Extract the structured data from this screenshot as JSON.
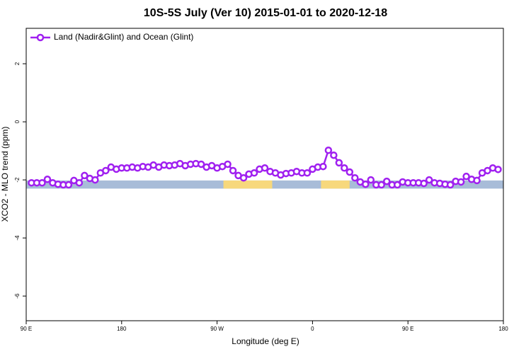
{
  "chart_data": {
    "type": "line",
    "title": "10S-5S July (Ver 10)   2015-01-01 to 2020-12-18",
    "x_label": "Longitude (deg E)",
    "y_label": "XCO2 - MLO trend (ppm)",
    "xlim": [
      90,
      540
    ],
    "ylim": [
      -6.85,
      3.22
    ],
    "xticks": [
      {
        "value": 90,
        "label": "90 E"
      },
      180,
      {
        "value": 270,
        "label": "90 W"
      },
      {
        "value": 360,
        "label": "0"
      },
      {
        "value": 450,
        "label": "90 E"
      },
      180
    ],
    "yticks": [
      2,
      0,
      -2,
      -4,
      -6
    ],
    "legend": "top-left",
    "band_range": [
      -2.3,
      -2.02
    ],
    "band_colors": [
      "#a8bcd8",
      "#f7d87c"
    ],
    "land_segments": [
      [
        276,
        322
      ],
      [
        368,
        395
      ]
    ],
    "x": [
      95,
      100,
      105,
      110,
      115,
      120,
      125,
      130,
      135,
      140,
      145,
      150,
      155,
      160,
      165,
      170,
      175,
      180,
      185,
      190,
      195,
      200,
      205,
      210,
      215,
      220,
      225,
      230,
      235,
      240,
      245,
      250,
      255,
      260,
      265,
      270,
      275,
      280,
      285,
      290,
      295,
      300,
      305,
      310,
      315,
      320,
      325,
      330,
      335,
      340,
      345,
      350,
      355,
      360,
      365,
      370,
      375,
      380,
      385,
      390,
      395,
      400,
      405,
      410,
      415,
      420,
      425,
      430,
      435,
      440,
      445,
      450,
      455,
      460,
      465,
      470,
      475,
      480,
      485,
      490,
      495,
      500,
      505,
      510,
      515,
      520,
      525,
      530,
      535
    ],
    "series": [
      {
        "name": "Land (Nadir&Glint) and Ocean (Glint)",
        "color": "#a020f0",
        "values": [
          -2.1,
          -2.1,
          -2.1,
          -1.98,
          -2.1,
          -2.15,
          -2.17,
          -2.17,
          -2.02,
          -2.1,
          -1.85,
          -1.95,
          -2.0,
          -1.76,
          -1.68,
          -1.56,
          -1.63,
          -1.59,
          -1.59,
          -1.56,
          -1.59,
          -1.54,
          -1.56,
          -1.49,
          -1.56,
          -1.49,
          -1.51,
          -1.49,
          -1.44,
          -1.51,
          -1.46,
          -1.44,
          -1.46,
          -1.56,
          -1.51,
          -1.59,
          -1.54,
          -1.46,
          -1.68,
          -1.85,
          -1.93,
          -1.8,
          -1.76,
          -1.63,
          -1.59,
          -1.71,
          -1.76,
          -1.83,
          -1.78,
          -1.76,
          -1.71,
          -1.76,
          -1.76,
          -1.63,
          -1.56,
          -1.54,
          -0.98,
          -1.15,
          -1.41,
          -1.59,
          -1.73,
          -1.93,
          -2.07,
          -2.15,
          -2.0,
          -2.17,
          -2.17,
          -2.05,
          -2.17,
          -2.17,
          -2.07,
          -2.1,
          -2.1,
          -2.1,
          -2.12,
          -2.0,
          -2.1,
          -2.12,
          -2.15,
          -2.17,
          -2.05,
          -2.07,
          -1.88,
          -1.98,
          -2.02,
          -1.76,
          -1.68,
          -1.59,
          -1.64
        ]
      }
    ]
  }
}
